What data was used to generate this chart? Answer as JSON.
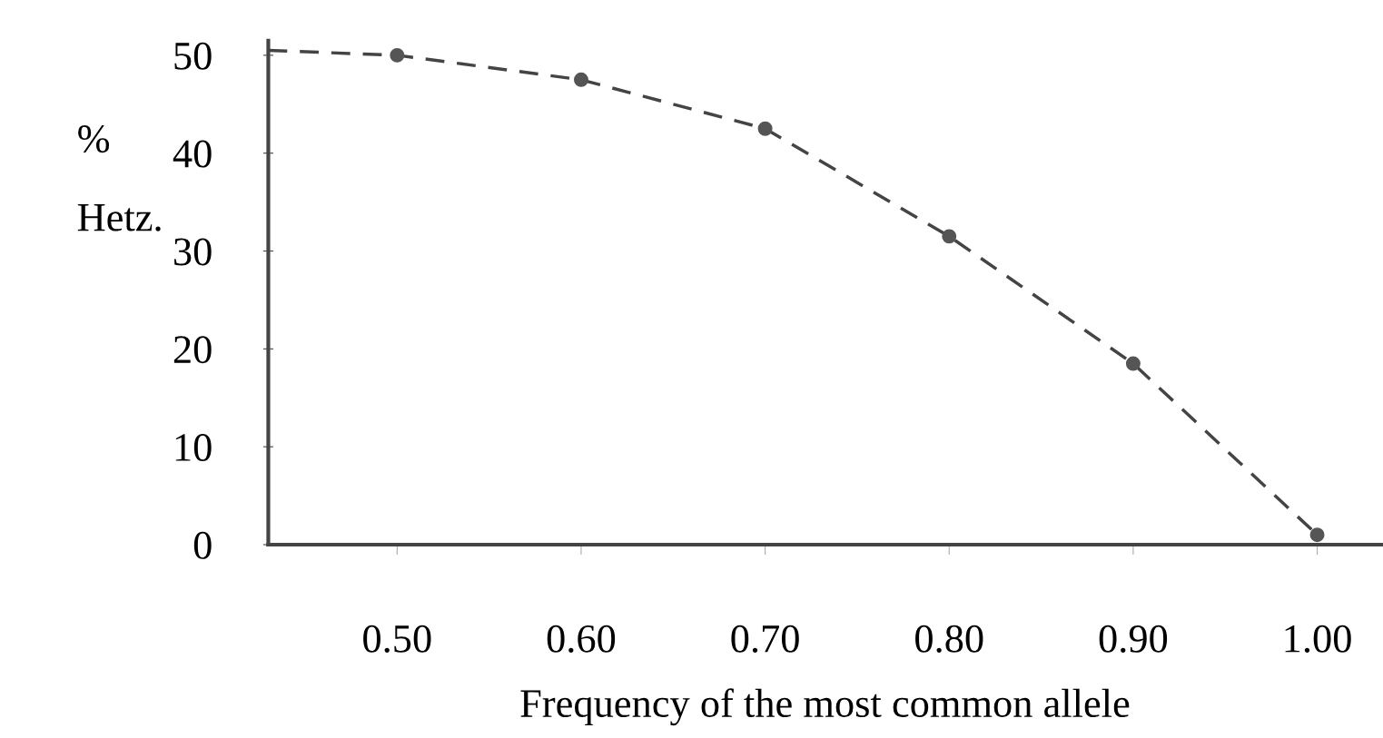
{
  "chart_data": {
    "type": "scatter",
    "xlabel": "Frequency of the most common allele",
    "ylabel": "%\nHetz.",
    "x": [
      0.5,
      0.6,
      0.7,
      0.8,
      0.9,
      1.0
    ],
    "series": [
      {
        "color": "#555555",
        "values": [
          50,
          47.5,
          42.5,
          31.5,
          18.5,
          1
        ],
        "marker": "circle"
      },
      {
        "type": "line",
        "color": "#444444",
        "x": [
          0.43,
          0.5,
          0.6,
          0.7,
          0.8,
          0.9,
          1.0
        ],
        "values": [
          50.5,
          50,
          47.5,
          42.5,
          31.5,
          18.5,
          1
        ],
        "line_style": "dashed",
        "marker": "none"
      }
    ],
    "xlim": [
      0.43,
      1.035
    ],
    "ylim": [
      0,
      51.5
    ],
    "xticks": [
      {
        "value": 0.5,
        "label": "0.50"
      },
      {
        "value": 0.6,
        "label": "0.60"
      },
      {
        "value": 0.7,
        "label": "0.70"
      },
      {
        "value": 0.8,
        "label": "0.80"
      },
      {
        "value": 0.9,
        "label": "0.90"
      },
      {
        "value": 1.0,
        "label": "1.00"
      }
    ],
    "yticks": [
      0,
      10,
      20,
      30,
      40,
      50
    ],
    "grid": false,
    "legend": false
  }
}
